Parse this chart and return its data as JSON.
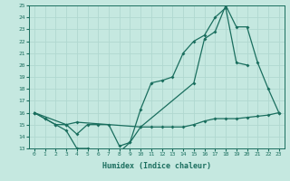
{
  "xlabel": "Humidex (Indice chaleur)",
  "x_values": [
    0,
    1,
    2,
    3,
    4,
    5,
    6,
    7,
    8,
    9,
    10,
    11,
    12,
    13,
    14,
    15,
    16,
    17,
    18,
    19,
    20,
    21,
    22,
    23
  ],
  "line1": [
    16,
    15.5,
    15,
    15,
    14.2,
    15,
    15,
    15,
    13.2,
    13.5,
    14.8,
    14.8,
    14.8,
    14.8,
    14.8,
    15,
    15.3,
    15.5,
    15.5,
    15.5,
    15.6,
    15.7,
    15.8,
    16
  ],
  "line2": [
    16,
    15.5,
    15,
    14.5,
    13.0,
    13.0,
    12.8,
    12.7,
    12.7,
    13.5,
    16.3,
    18.5,
    18.7,
    19.0,
    21.0,
    22.0,
    22.5,
    24.0,
    24.8,
    20.2,
    20.0,
    null,
    null,
    null
  ],
  "line3": [
    16,
    null,
    null,
    15.0,
    15.2,
    null,
    null,
    null,
    null,
    null,
    14.8,
    null,
    null,
    null,
    null,
    18.5,
    22.2,
    22.8,
    25.0,
    23.2,
    23.2,
    20.2,
    18.0,
    16.0
  ],
  "color": "#1a6e5e",
  "bg_color": "#c5e8e0",
  "grid_color": "#b0d8d0",
  "ylim": [
    13,
    25
  ],
  "xlim": [
    -0.5,
    23.5
  ],
  "yticks": [
    13,
    14,
    15,
    16,
    17,
    18,
    19,
    20,
    21,
    22,
    23,
    24,
    25
  ],
  "xticks": [
    0,
    1,
    2,
    3,
    4,
    5,
    6,
    7,
    8,
    9,
    10,
    11,
    12,
    13,
    14,
    15,
    16,
    17,
    18,
    19,
    20,
    21,
    22,
    23
  ]
}
